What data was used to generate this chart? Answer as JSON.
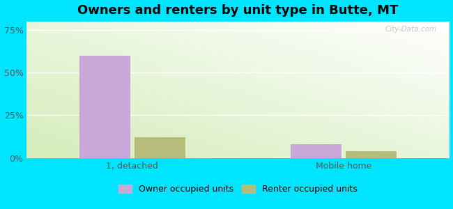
{
  "title": "Owners and renters by unit type in Butte, MT",
  "categories": [
    "1, detached",
    "Mobile home"
  ],
  "owner_values": [
    60,
    8
  ],
  "renter_values": [
    12,
    4
  ],
  "owner_color": "#c9a8d9",
  "renter_color": "#b8bc7a",
  "yticks": [
    0,
    25,
    50,
    75
  ],
  "ytick_labels": [
    "0%",
    "25%",
    "50%",
    "75%"
  ],
  "ylim": [
    0,
    80
  ],
  "bar_width": 0.12,
  "group_centers": [
    0.25,
    0.75
  ],
  "xlim": [
    0.0,
    1.0
  ],
  "outer_bg": "#00e5ff",
  "legend_owner": "Owner occupied units",
  "legend_renter": "Renter occupied units",
  "watermark": "City-Data.com",
  "title_fontsize": 13,
  "label_fontsize": 9,
  "tick_fontsize": 9,
  "grid_color": "#ffffff",
  "bg_colors_top": "#f0f8e8",
  "bg_colors_bottom": "#e8f5e0"
}
